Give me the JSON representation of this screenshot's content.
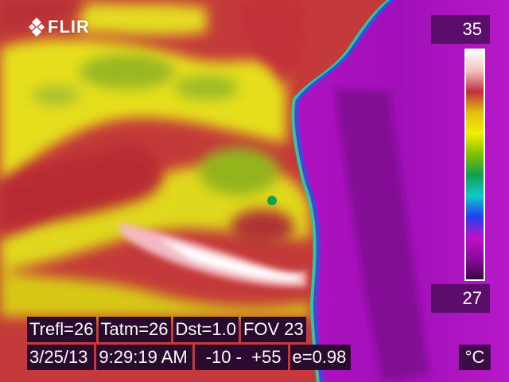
{
  "brand": {
    "logo_text": "FLIR",
    "logo_icon": "flir-diamond-logo-icon"
  },
  "scale": {
    "max": "35",
    "min": "27",
    "unit": "°C",
    "palette": [
      "#ffffff",
      "#f0c0c0",
      "#c0303a",
      "#e0c010",
      "#f0f000",
      "#80c000",
      "#10a050",
      "#10c8c8",
      "#2040f0",
      "#c010c8",
      "#8a0aa0",
      "#3a0840"
    ]
  },
  "params": {
    "trefl": "Trefl=26",
    "tatm": "Tatm=26",
    "dst": "Dst=1.0",
    "fov": "FOV 23"
  },
  "status": {
    "date": "3/25/13",
    "time": "9:29:19 AM",
    "range": "-10 -  +55",
    "emissivity": "e=0.98"
  },
  "colors": {
    "hot_white": "#ffffff",
    "warm_red": "#c0303a",
    "yellow": "#e8e020",
    "green": "#9ab820",
    "cool_magenta": "#c010c8",
    "cold_purple": "#7a0a8a"
  }
}
